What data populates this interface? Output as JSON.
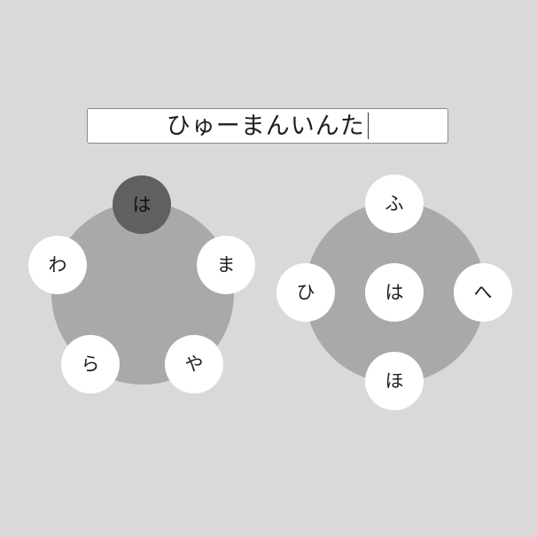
{
  "input": {
    "text": "ひゅーまんいんた"
  },
  "left_wheel": {
    "active_key": "は",
    "keys": [
      {
        "label": "は",
        "state": "active"
      },
      {
        "label": "ま"
      },
      {
        "label": "や"
      },
      {
        "label": "ら"
      },
      {
        "label": "わ"
      }
    ]
  },
  "right_wheel": {
    "keys": [
      {
        "label": "ふ"
      },
      {
        "label": "ひ"
      },
      {
        "label": "は"
      },
      {
        "label": "へ"
      },
      {
        "label": "ほ"
      }
    ]
  },
  "colors": {
    "background": "#d9d9d9",
    "disc": "#a9a9a9",
    "key": "#ffffff",
    "active_key": "#606060"
  }
}
